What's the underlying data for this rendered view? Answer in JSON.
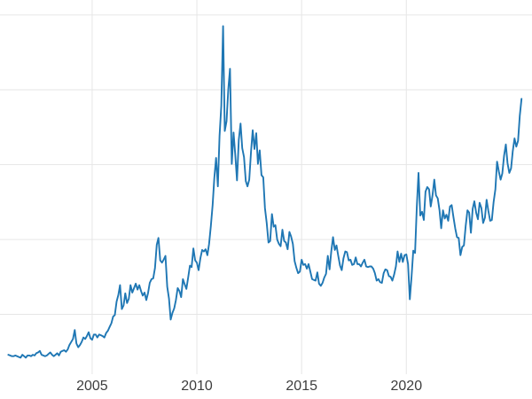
{
  "chart_data": {
    "type": "line",
    "title": "",
    "xlabel": "",
    "ylabel": "",
    "legend": "none",
    "grid": true,
    "x_unit": "decimal_year",
    "x_start": 2001.0,
    "x_step": 0.0833333,
    "x_domain": [
      2000.6,
      2026.0
    ],
    "y_domain": [
      2,
      52
    ],
    "x_ticks": [
      2005,
      2010,
      2015,
      2020
    ],
    "x_tick_labels": [
      "2005",
      "2010",
      "2015",
      "2020"
    ],
    "y_gridlines": [
      10,
      20,
      30,
      40,
      50
    ],
    "values": [
      4.6,
      4.5,
      4.4,
      4.4,
      4.5,
      4.4,
      4.3,
      4.2,
      4.6,
      4.4,
      4.2,
      4.5,
      4.5,
      4.4,
      4.6,
      4.5,
      4.8,
      4.9,
      5.1,
      4.6,
      4.5,
      4.4,
      4.5,
      4.7,
      4.9,
      4.6,
      4.4,
      4.6,
      4.8,
      4.5,
      5.0,
      5.1,
      5.2,
      5.0,
      5.3,
      5.9,
      6.3,
      6.7,
      7.9,
      6.1,
      5.6,
      5.9,
      6.3,
      6.9,
      6.7,
      7.1,
      7.6,
      6.8,
      6.6,
      7.3,
      7.3,
      6.9,
      7.3,
      7.2,
      7.1,
      6.9,
      7.5,
      7.8,
      8.3,
      8.8,
      9.7,
      9.9,
      11.7,
      12.6,
      13.9,
      10.7,
      11.2,
      12.8,
      11.5,
      12.1,
      13.9,
      12.9,
      13.5,
      14.1,
      13.3,
      13.9,
      13.1,
      12.5,
      12.9,
      11.9,
      12.8,
      14.2,
      14.7,
      14.8,
      16.2,
      19.3,
      20.2,
      17.2,
      16.9,
      17.3,
      17.8,
      13.7,
      12.1,
      9.3,
      10.2,
      10.8,
      11.9,
      13.5,
      13.1,
      12.3,
      14.7,
      14.0,
      13.4,
      14.9,
      16.5,
      16.3,
      18.8,
      17.2,
      16.9,
      15.9,
      17.5,
      18.6,
      18.4,
      18.7,
      17.9,
      19.4,
      21.8,
      24.6,
      28.2,
      30.9,
      27.1,
      33.8,
      37.9,
      48.5,
      34.5,
      35.8,
      40.1,
      42.8,
      30.1,
      34.3,
      31.2,
      27.9,
      33.3,
      35.5,
      32.2,
      31.0,
      27.8,
      27.1,
      28.0,
      31.7,
      34.6,
      32.1,
      34.2,
      30.1,
      31.9,
      28.6,
      28.3,
      24.2,
      22.2,
      19.6,
      19.8,
      23.4,
      21.7,
      21.9,
      20.0,
      19.4,
      19.1,
      21.3,
      19.8,
      19.6,
      18.7,
      21.0,
      20.4,
      19.4,
      17.1,
      16.2,
      15.5,
      15.7,
      17.3,
      16.6,
      16.7,
      16.1,
      16.7,
      15.7,
      14.7,
      14.6,
      14.5,
      15.6,
      14.1,
      13.8,
      14.2,
      14.9,
      15.4,
      17.8,
      16.0,
      18.4,
      20.3,
      18.6,
      19.2,
      17.8,
      16.5,
      15.9,
      17.5,
      18.4,
      18.3,
      17.2,
      17.3,
      16.6,
      16.7,
      17.6,
      16.7,
      16.7,
      16.4,
      16.9,
      17.3,
      16.4,
      16.3,
      16.4,
      16.4,
      16.1,
      15.5,
      14.5,
      14.7,
      14.3,
      14.2,
      15.5,
      16.0,
      15.9,
      15.1,
      15.0,
      14.5,
      15.3,
      16.4,
      18.4,
      17.0,
      18.1,
      17.0,
      17.9,
      18.0,
      16.7,
      12.0,
      15.1,
      18.5,
      18.2,
      24.4,
      28.9,
      23.2,
      23.7,
      22.6,
      26.4,
      27.0,
      26.7,
      24.4,
      25.9,
      28.0,
      25.9,
      25.5,
      23.9,
      21.5,
      23.9,
      22.8,
      23.3,
      22.5,
      24.4,
      24.6,
      23.0,
      21.5,
      20.3,
      20.2,
      17.9,
      19.0,
      19.2,
      21.8,
      23.9,
      23.6,
      20.9,
      24.1,
      25.1,
      23.6,
      22.7,
      24.9,
      24.2,
      22.2,
      22.9,
      25.3,
      23.8,
      22.5,
      22.6,
      25.0,
      26.7,
      30.4,
      29.1,
      28.0,
      28.8,
      31.2,
      32.7,
      30.2,
      28.9,
      29.5,
      31.8,
      33.5,
      32.4,
      33.2,
      36.5,
      38.8
    ]
  },
  "colors": {
    "line": "#1f77b4",
    "grid": "#e6e6e6",
    "tick_label": "#3d3d3d",
    "background": "#ffffff"
  }
}
